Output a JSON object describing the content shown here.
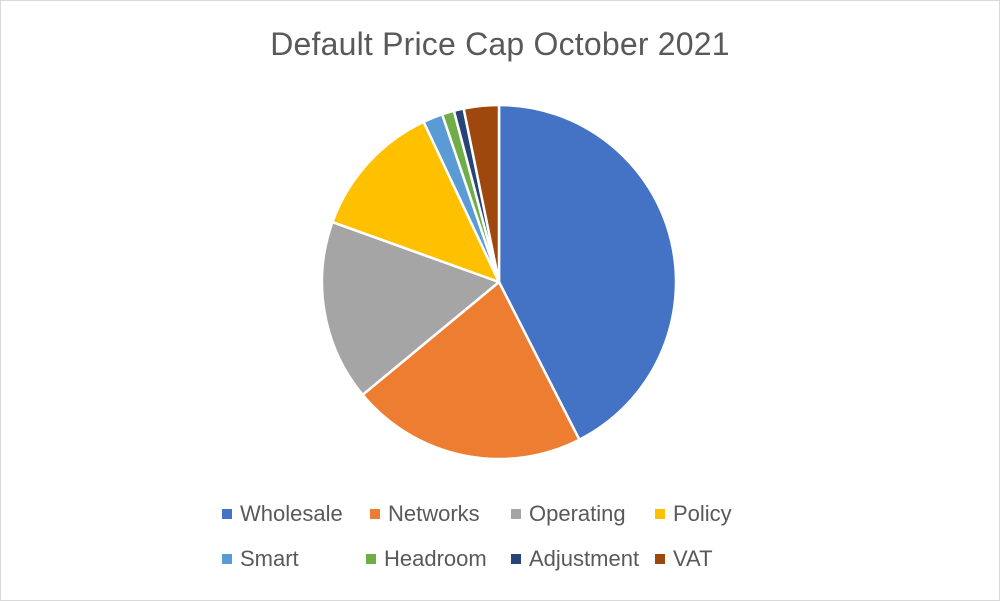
{
  "chart_data": {
    "type": "pie",
    "title": "Default Price Cap October 2021",
    "categories": [
      "Wholesale",
      "Networks",
      "Operating",
      "Policy",
      "Smart",
      "Headroom",
      "Adjustment",
      "VAT"
    ],
    "values": [
      42.5,
      21.5,
      16.5,
      12.5,
      1.8,
      1.1,
      0.9,
      3.2
    ],
    "colors": [
      "#4472C4",
      "#ED7D31",
      "#A5A5A5",
      "#FFC000",
      "#5B9BD5",
      "#70AD47",
      "#264478",
      "#9E480E"
    ],
    "legend_position": "bottom"
  }
}
